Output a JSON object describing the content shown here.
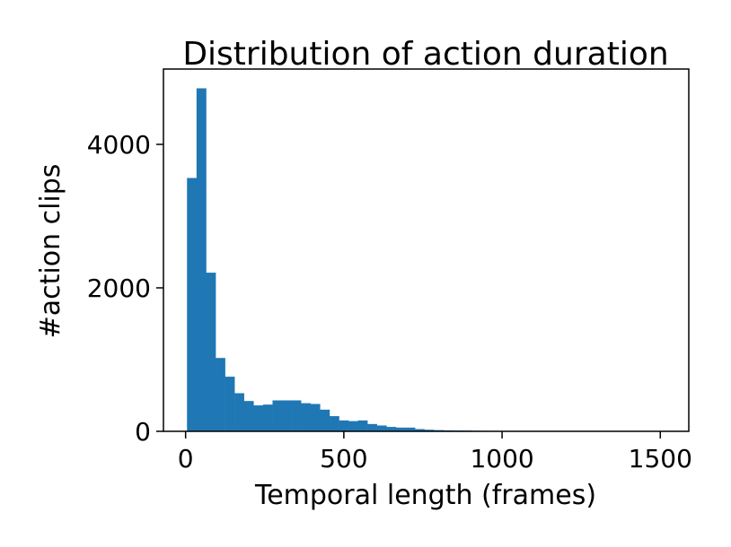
{
  "chart_data": {
    "type": "bar",
    "title": "Distribution of action duration",
    "xlabel": "Temporal length (frames)",
    "ylabel": "#action clips",
    "xlim": [
      -70,
      1590
    ],
    "ylim": [
      0,
      5050
    ],
    "x_ticks": [
      0,
      500,
      1000,
      1500
    ],
    "x_tick_labels": [
      "0",
      "500",
      "1000",
      "1500"
    ],
    "y_ticks": [
      0,
      2000,
      4000
    ],
    "y_tick_labels": [
      "0",
      "2000",
      "4000"
    ],
    "bin_edges": [
      5,
      35,
      65,
      95,
      125,
      155,
      185,
      215,
      245,
      275,
      305,
      335,
      365,
      395,
      425,
      455,
      485,
      515,
      545,
      575,
      605,
      635,
      665,
      695,
      725,
      755,
      785,
      815,
      845,
      875,
      905,
      935,
      965,
      995,
      1025,
      1055,
      1085,
      1115,
      1145,
      1175,
      1205,
      1235,
      1265,
      1295,
      1325,
      1355,
      1385,
      1415,
      1445,
      1475,
      1505
    ],
    "values": [
      3530,
      4780,
      2210,
      1020,
      760,
      530,
      420,
      360,
      370,
      430,
      430,
      430,
      390,
      380,
      300,
      210,
      150,
      140,
      150,
      100,
      80,
      60,
      50,
      50,
      30,
      20,
      15,
      12,
      10,
      8,
      6,
      5,
      4,
      3,
      3,
      2,
      2,
      1,
      1,
      1,
      1,
      1,
      1,
      0,
      0,
      0,
      0,
      0,
      0,
      1
    ],
    "bar_color": "#1f77b4",
    "grid": false,
    "legend": "none"
  }
}
